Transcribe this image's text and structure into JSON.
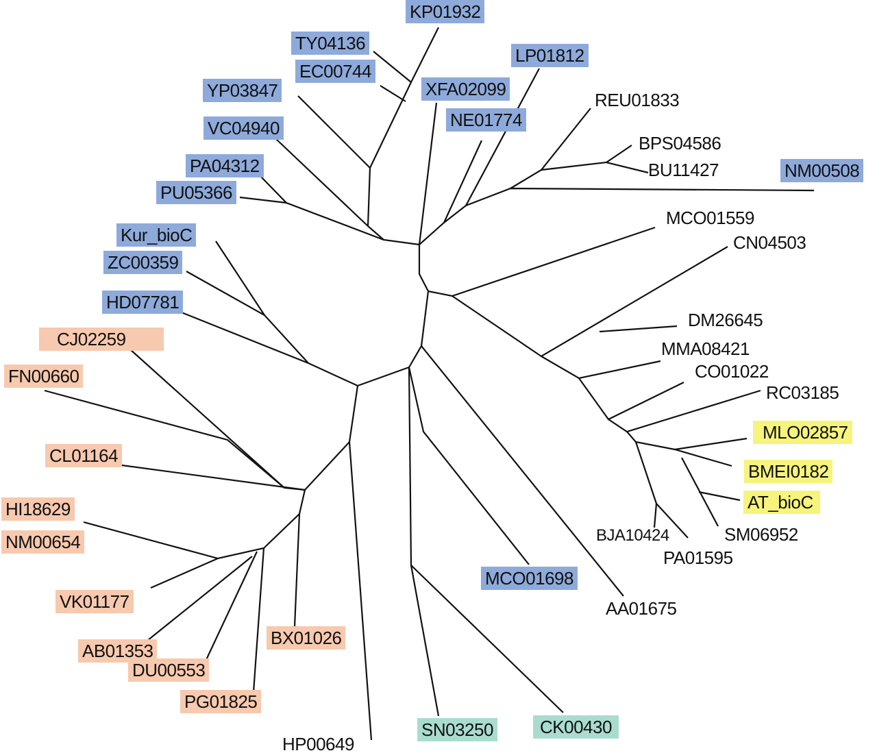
{
  "colors": {
    "blue": "#8eaadb",
    "salmon": "#f7c9ae",
    "yellow": "#f6f47c",
    "teal": "#a9dccf",
    "branch": "#111111"
  },
  "leaves": {
    "blue": [
      "KP01932",
      "TY04136",
      "EC00744",
      "YP03847",
      "XFA02099",
      "LP01812",
      "NE01774",
      "VC04940",
      "PA04312",
      "PU05366",
      "Kur_bioC",
      "ZC00359",
      "HD07781",
      "NM00508",
      "MCO01698"
    ],
    "plain": [
      "REU01833",
      "BPS04586",
      "BU11427",
      "MCO01559",
      "CN04503",
      "DM26645",
      "MMA08421",
      "CO01022",
      "RC03185",
      "BJA10424",
      "PA01595",
      "SM06952",
      "AA01675",
      "HP00649"
    ],
    "salmon": [
      "CJ02259",
      "FN00660",
      "CL01164",
      "HI18629",
      "NM00654",
      "VK01177",
      "AB01353",
      "DU00553",
      "PG01825",
      "BX01026"
    ],
    "yellow": [
      "MLO02857",
      "BMEI0182",
      "AT_bioC"
    ],
    "teal": [
      "SN03250",
      "CK00430"
    ]
  }
}
